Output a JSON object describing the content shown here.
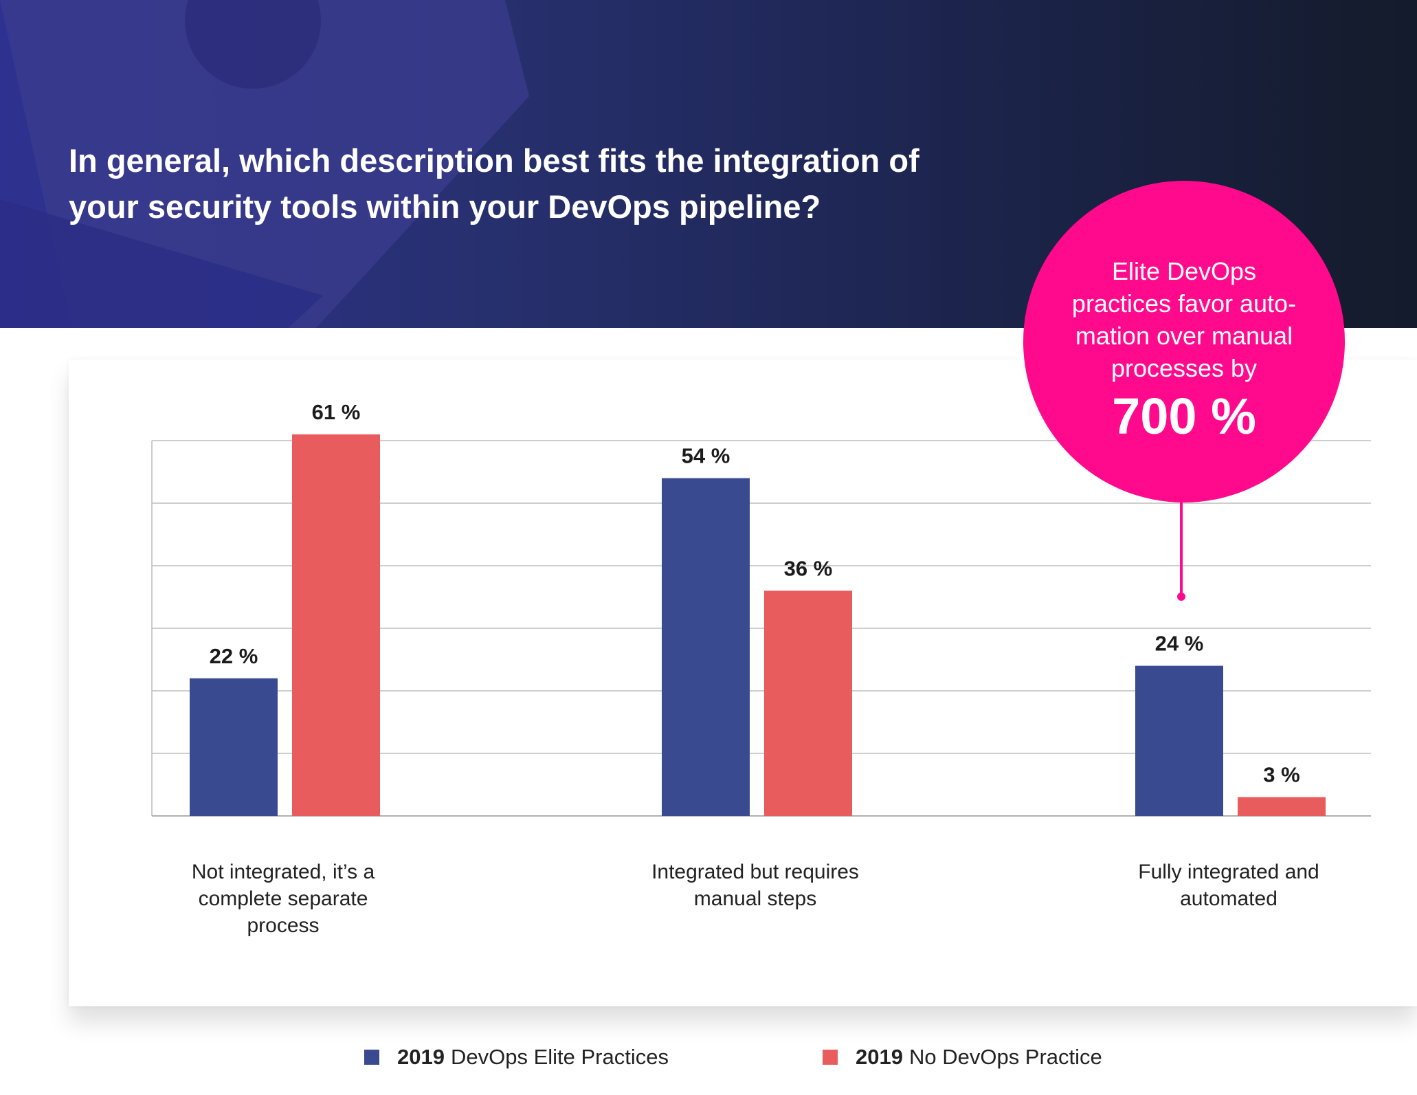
{
  "title_lines": [
    "In general, which description best fits the integration of",
    "your security tools within your DevOps pipeline?"
  ],
  "callout": {
    "lines": [
      "Elite DevOps",
      "practices favor auto-",
      "mation over manual",
      "processes by"
    ],
    "value": "700 %"
  },
  "colors": {
    "elite": "#3a4a91",
    "none": "#e85c5e",
    "callout": "#ff0a8c"
  },
  "chart_data": {
    "type": "bar",
    "title": "In general, which description best fits the integration of your security tools within your DevOps pipeline?",
    "categories": [
      [
        "Not integrated, it’s a",
        "complete separate",
        "process"
      ],
      [
        "Integrated but requires",
        "manual steps"
      ],
      [
        "Fully integrated and",
        "automated"
      ]
    ],
    "series": [
      {
        "name_bold": "2019",
        "name_rest": "DevOps Elite Practices",
        "values": [
          22,
          54,
          24
        ],
        "labels": [
          "22 %",
          "54 %",
          "24 %"
        ]
      },
      {
        "name_bold": "2019",
        "name_rest": "No DevOps Practice",
        "values": [
          61,
          36,
          3
        ],
        "labels": [
          "61 %",
          "36 %",
          "3 %"
        ]
      }
    ],
    "ylim": [
      0,
      60
    ],
    "gridlines": [
      10,
      20,
      30,
      40,
      50,
      60
    ],
    "grid": true,
    "legend_position": "bottom-center",
    "xlabel": "",
    "ylabel": ""
  }
}
